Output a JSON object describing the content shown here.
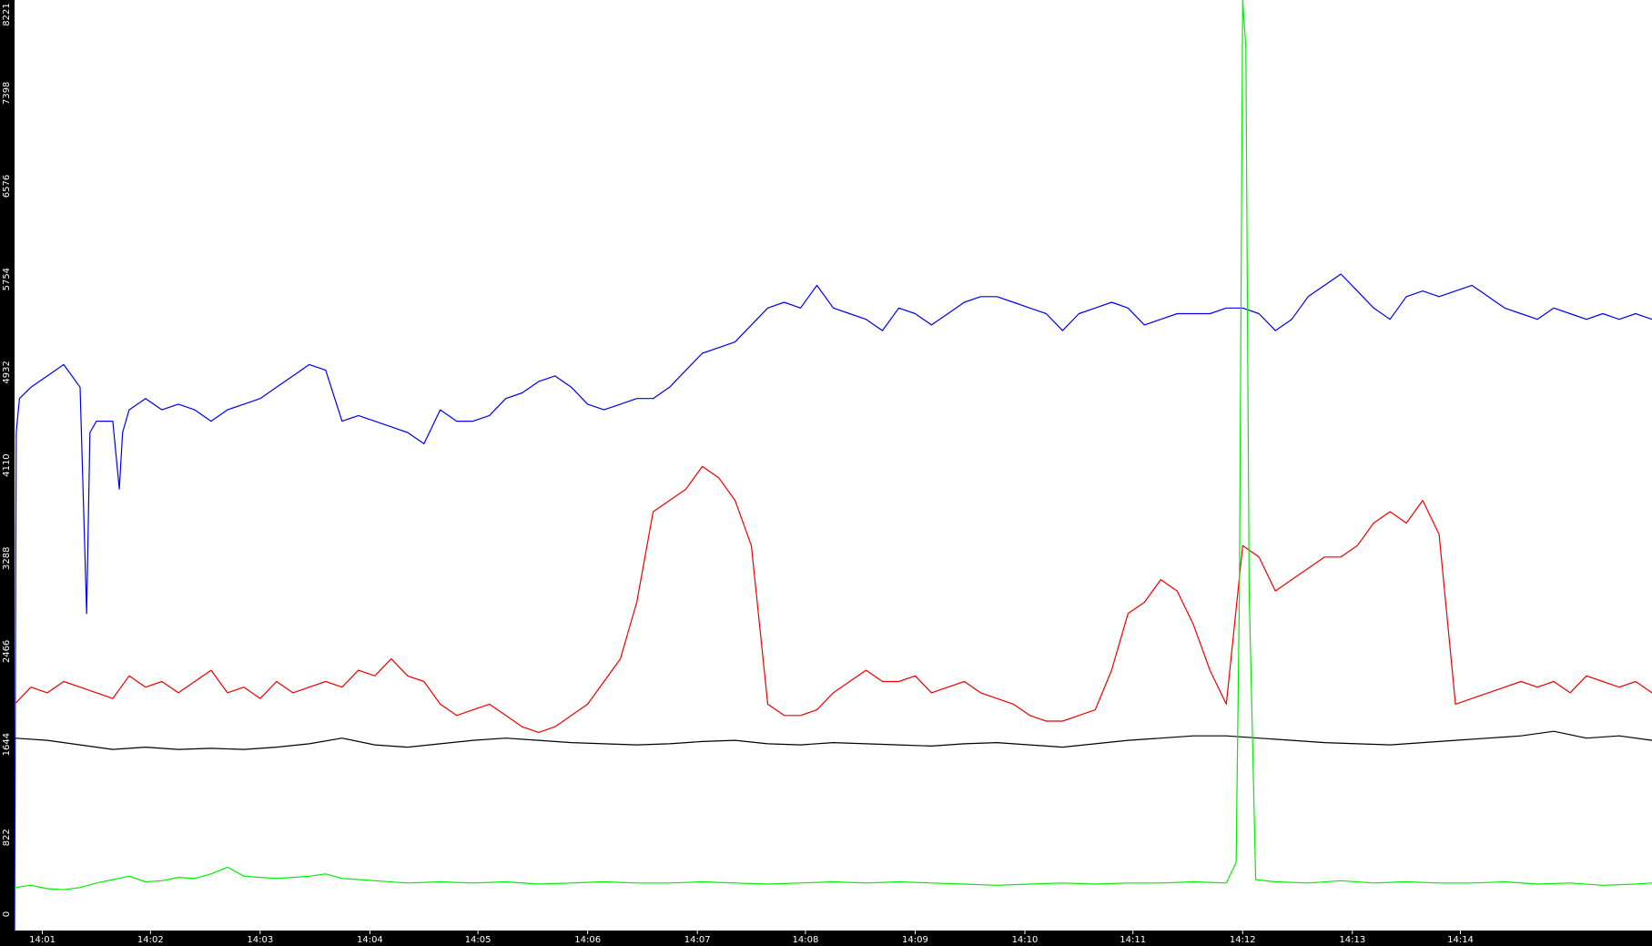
{
  "colors": {
    "background": "#000000",
    "plot_background": "#ffffff",
    "axis_text": "#ffffff",
    "blue": "#0000ee",
    "red": "#ee0000",
    "black": "#000000",
    "green": "#00ee00"
  },
  "chart_data": {
    "type": "line",
    "title": "",
    "xlabel": "",
    "ylabel": "",
    "grid": false,
    "legend": "none",
    "ylim": [
      0,
      8221
    ],
    "xlim_minutes": [
      14.0,
      15.0
    ],
    "yticks": [
      0,
      822,
      1644,
      2466,
      3288,
      4110,
      4932,
      5754,
      6576,
      7398,
      8221
    ],
    "xticks": [
      {
        "label": "14:01",
        "t": 14.017
      },
      {
        "label": "14:02",
        "t": 14.083
      },
      {
        "label": "14:03",
        "t": 14.15
      },
      {
        "label": "14:04",
        "t": 14.217
      },
      {
        "label": "14:05",
        "t": 14.283
      },
      {
        "label": "14:06",
        "t": 14.35
      },
      {
        "label": "14:07",
        "t": 14.417
      },
      {
        "label": "14:08",
        "t": 14.483
      },
      {
        "label": "14:09",
        "t": 14.55
      },
      {
        "label": "14:10",
        "t": 14.617
      },
      {
        "label": "14:11",
        "t": 14.683
      },
      {
        "label": "14:12",
        "t": 14.75
      },
      {
        "label": "14:13",
        "t": 14.817
      },
      {
        "label": "14:14",
        "t": 14.883
      }
    ],
    "series": [
      {
        "key": "blue",
        "color": "#0000ee",
        "x": [
          14.0,
          14.001,
          14.003,
          14.01,
          14.02,
          14.03,
          14.04,
          14.044,
          14.046,
          14.05,
          14.06,
          14.064,
          14.066,
          14.07,
          14.08,
          14.09,
          14.1,
          14.11,
          14.12,
          14.13,
          14.14,
          14.15,
          14.16,
          14.17,
          14.18,
          14.19,
          14.2,
          14.21,
          14.22,
          14.23,
          14.24,
          14.25,
          14.26,
          14.27,
          14.28,
          14.29,
          14.3,
          14.31,
          14.32,
          14.33,
          14.34,
          14.35,
          14.36,
          14.37,
          14.38,
          14.39,
          14.4,
          14.41,
          14.42,
          14.43,
          14.44,
          14.45,
          14.46,
          14.47,
          14.48,
          14.49,
          14.5,
          14.51,
          14.52,
          14.53,
          14.54,
          14.55,
          14.56,
          14.57,
          14.58,
          14.59,
          14.6,
          14.61,
          14.62,
          14.63,
          14.64,
          14.65,
          14.66,
          14.67,
          14.68,
          14.69,
          14.7,
          14.71,
          14.72,
          14.73,
          14.74,
          14.75,
          14.76,
          14.77,
          14.78,
          14.79,
          14.8,
          14.81,
          14.82,
          14.83,
          14.84,
          14.85,
          14.86,
          14.87,
          14.88,
          14.89,
          14.9,
          14.91,
          14.92,
          14.93,
          14.94,
          14.95,
          14.96,
          14.97,
          14.98,
          14.99,
          15.0
        ],
        "y": [
          0,
          4400,
          4700,
          4800,
          4900,
          5000,
          4800,
          2800,
          4400,
          4500,
          4500,
          3900,
          4400,
          4600,
          4700,
          4600,
          4650,
          4600,
          4500,
          4600,
          4650,
          4700,
          4800,
          4900,
          5000,
          4950,
          4500,
          4550,
          4500,
          4450,
          4400,
          4300,
          4600,
          4500,
          4500,
          4550,
          4700,
          4750,
          4850,
          4900,
          4800,
          4650,
          4600,
          4650,
          4700,
          4700,
          4800,
          4950,
          5100,
          5150,
          5200,
          5350,
          5500,
          5550,
          5500,
          5700,
          5500,
          5450,
          5400,
          5300,
          5500,
          5450,
          5350,
          5450,
          5550,
          5600,
          5600,
          5550,
          5500,
          5450,
          5300,
          5450,
          5500,
          5550,
          5500,
          5350,
          5400,
          5450,
          5450,
          5450,
          5500,
          5500,
          5450,
          5300,
          5400,
          5600,
          5700,
          5800,
          5650,
          5500,
          5400,
          5600,
          5650,
          5600,
          5650,
          5700,
          5600,
          5500,
          5450,
          5400,
          5500,
          5450,
          5400,
          5450,
          5400,
          5450,
          5400
        ]
      },
      {
        "key": "red",
        "color": "#ee0000",
        "x": [
          14.0,
          14.01,
          14.02,
          14.03,
          14.04,
          14.05,
          14.06,
          14.07,
          14.08,
          14.09,
          14.1,
          14.11,
          14.12,
          14.13,
          14.14,
          14.15,
          14.16,
          14.17,
          14.18,
          14.19,
          14.2,
          14.21,
          14.22,
          14.23,
          14.24,
          14.25,
          14.26,
          14.27,
          14.28,
          14.29,
          14.3,
          14.31,
          14.32,
          14.33,
          14.34,
          14.35,
          14.36,
          14.37,
          14.38,
          14.39,
          14.4,
          14.41,
          14.42,
          14.43,
          14.44,
          14.45,
          14.46,
          14.47,
          14.48,
          14.49,
          14.5,
          14.51,
          14.52,
          14.53,
          14.54,
          14.55,
          14.56,
          14.57,
          14.58,
          14.59,
          14.6,
          14.61,
          14.62,
          14.63,
          14.64,
          14.65,
          14.66,
          14.67,
          14.68,
          14.69,
          14.7,
          14.71,
          14.72,
          14.73,
          14.74,
          14.75,
          14.76,
          14.77,
          14.78,
          14.79,
          14.8,
          14.81,
          14.82,
          14.83,
          14.84,
          14.85,
          14.86,
          14.87,
          14.88,
          14.89,
          14.9,
          14.91,
          14.92,
          14.93,
          14.94,
          14.95,
          14.96,
          14.97,
          14.98,
          14.99,
          15.0
        ],
        "y": [
          2000,
          2150,
          2100,
          2200,
          2150,
          2100,
          2050,
          2250,
          2150,
          2200,
          2100,
          2200,
          2300,
          2100,
          2150,
          2050,
          2200,
          2100,
          2150,
          2200,
          2150,
          2300,
          2250,
          2400,
          2250,
          2200,
          2000,
          1900,
          1950,
          2000,
          1900,
          1800,
          1750,
          1800,
          1900,
          2000,
          2200,
          2400,
          2900,
          3700,
          3800,
          3900,
          4100,
          4000,
          3800,
          3400,
          2000,
          1900,
          1900,
          1950,
          2100,
          2200,
          2300,
          2200,
          2200,
          2250,
          2100,
          2150,
          2200,
          2100,
          2050,
          2000,
          1900,
          1850,
          1850,
          1900,
          1950,
          2300,
          2800,
          2900,
          3100,
          3000,
          2700,
          2300,
          2000,
          3400,
          3300,
          3000,
          3100,
          3200,
          3300,
          3300,
          3400,
          3600,
          3700,
          3600,
          3800,
          3500,
          2000,
          2050,
          2100,
          2150,
          2200,
          2150,
          2200,
          2100,
          2250,
          2200,
          2150,
          2200,
          2100
        ]
      },
      {
        "key": "black",
        "color": "#000000",
        "x": [
          14.0,
          14.02,
          14.04,
          14.06,
          14.08,
          14.1,
          14.12,
          14.14,
          14.16,
          14.18,
          14.2,
          14.22,
          14.24,
          14.26,
          14.28,
          14.3,
          14.32,
          14.34,
          14.36,
          14.38,
          14.4,
          14.42,
          14.44,
          14.46,
          14.48,
          14.5,
          14.52,
          14.54,
          14.56,
          14.58,
          14.6,
          14.62,
          14.64,
          14.66,
          14.68,
          14.7,
          14.72,
          14.74,
          14.76,
          14.78,
          14.8,
          14.82,
          14.84,
          14.86,
          14.88,
          14.9,
          14.92,
          14.94,
          14.96,
          14.98,
          15.0
        ],
        "y": [
          1700,
          1680,
          1640,
          1600,
          1620,
          1600,
          1610,
          1600,
          1620,
          1650,
          1700,
          1640,
          1620,
          1650,
          1680,
          1700,
          1680,
          1660,
          1650,
          1640,
          1650,
          1670,
          1680,
          1650,
          1640,
          1660,
          1650,
          1640,
          1630,
          1650,
          1660,
          1640,
          1620,
          1650,
          1680,
          1700,
          1720,
          1720,
          1700,
          1680,
          1660,
          1650,
          1640,
          1660,
          1680,
          1700,
          1720,
          1760,
          1700,
          1720,
          1680
        ]
      },
      {
        "key": "green",
        "color": "#00ee00",
        "x": [
          14.0,
          14.01,
          14.02,
          14.03,
          14.04,
          14.05,
          14.06,
          14.07,
          14.08,
          14.09,
          14.1,
          14.11,
          14.12,
          14.13,
          14.14,
          14.15,
          14.16,
          14.17,
          14.18,
          14.19,
          14.2,
          14.22,
          14.24,
          14.26,
          14.28,
          14.3,
          14.32,
          14.34,
          14.36,
          14.38,
          14.4,
          14.42,
          14.44,
          14.46,
          14.48,
          14.5,
          14.52,
          14.54,
          14.56,
          14.58,
          14.6,
          14.62,
          14.64,
          14.66,
          14.68,
          14.7,
          14.72,
          14.74,
          14.746,
          14.748,
          14.75,
          14.752,
          14.754,
          14.758,
          14.77,
          14.79,
          14.81,
          14.83,
          14.85,
          14.87,
          14.89,
          14.91,
          14.93,
          14.95,
          14.97,
          14.99,
          15.0
        ],
        "y": [
          380,
          400,
          370,
          360,
          380,
          420,
          450,
          480,
          430,
          440,
          470,
          460,
          500,
          560,
          480,
          470,
          460,
          470,
          480,
          500,
          460,
          440,
          420,
          430,
          420,
          430,
          410,
          420,
          430,
          420,
          420,
          430,
          420,
          410,
          420,
          430,
          420,
          430,
          420,
          410,
          400,
          410,
          420,
          410,
          420,
          420,
          430,
          420,
          600,
          3000,
          8221,
          7800,
          3000,
          450,
          430,
          420,
          440,
          420,
          430,
          420,
          420,
          430,
          410,
          420,
          400,
          410,
          420
        ]
      }
    ]
  }
}
